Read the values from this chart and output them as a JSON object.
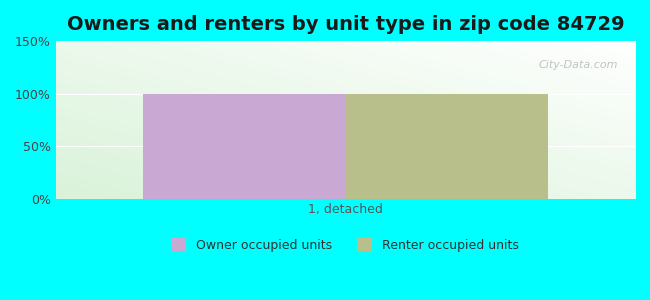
{
  "title": "Owners and renters by unit type in zip code 84729",
  "categories": [
    "1, detached"
  ],
  "owner_values": [
    100
  ],
  "renter_values": [
    100
  ],
  "owner_color": "#c9a8d4",
  "renter_color": "#b8bf8a",
  "ylim": [
    0,
    150
  ],
  "yticks": [
    0,
    50,
    100,
    150
  ],
  "ytick_labels": [
    "0%",
    "50%",
    "100%",
    "150%"
  ],
  "background_color": "#00FFFF",
  "title_fontsize": 14,
  "label_fontsize": 9,
  "legend_label_owner": "Owner occupied units",
  "legend_label_renter": "Renter occupied units",
  "watermark": "City-Data.com",
  "bar_width": 0.35
}
